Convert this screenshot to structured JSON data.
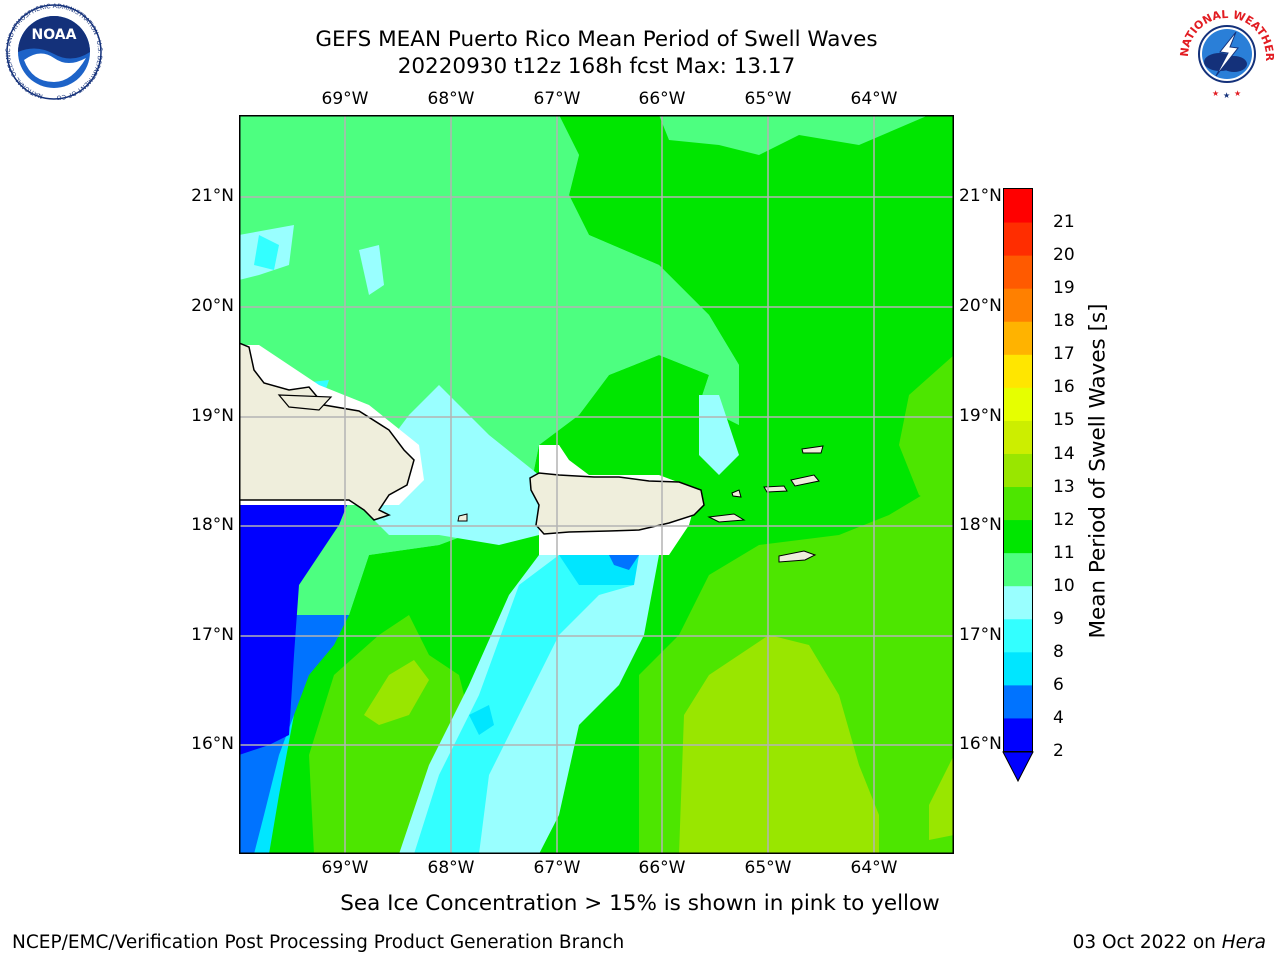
{
  "header": {
    "title_line1": "GEFS MEAN Puerto Rico Mean Period of Swell Waves",
    "title_line2": "20220930 t12z 168h fcst   Max: 13.17"
  },
  "logos": {
    "left": {
      "name": "noaa-logo",
      "text": "NOAA",
      "ring_text": "NATIONAL OCEANIC AND ATMOSPHERIC ADMINISTRATION · U.S. DEPARTMENT OF COMMERCE"
    },
    "right": {
      "name": "nws-logo",
      "ring_text": "NATIONAL WEATHER SERVICE"
    }
  },
  "map": {
    "lon_ticks": [
      "69°W",
      "68°W",
      "67°W",
      "66°W",
      "65°W",
      "64°W"
    ],
    "lat_ticks": [
      "21°N",
      "20°N",
      "19°N",
      "18°N",
      "17°N",
      "16°N"
    ],
    "extent": {
      "lon_min": -70.0,
      "lon_max": -63.25,
      "lat_min": 15.0,
      "lat_max": 21.75
    }
  },
  "colorbar": {
    "label": "Mean Period of Swell Waves [s]",
    "ticks": [
      "2",
      "4",
      "6",
      "8",
      "9",
      "10",
      "11",
      "12",
      "13",
      "14",
      "15",
      "16",
      "17",
      "18",
      "19",
      "20",
      "21"
    ],
    "colors": [
      "#0000ff",
      "#0073ff",
      "#00e6ff",
      "#33ffff",
      "#99ffff",
      "#4dff80",
      "#00e600",
      "#4de600",
      "#99e600",
      "#ccee00",
      "#e6ff00",
      "#ffe600",
      "#ffb300",
      "#ff8000",
      "#ff5a00",
      "#ff2d00",
      "#ff0000"
    ],
    "extend_min_color": "#0000ff"
  },
  "note": "Sea Ice Concentration > 15% is shown in pink to yellow",
  "footer": {
    "left": "NCEP/EMC/Verification Post Processing Product Generation Branch",
    "right_date": "03 Oct 2022 on",
    "right_machine": "Hera"
  }
}
